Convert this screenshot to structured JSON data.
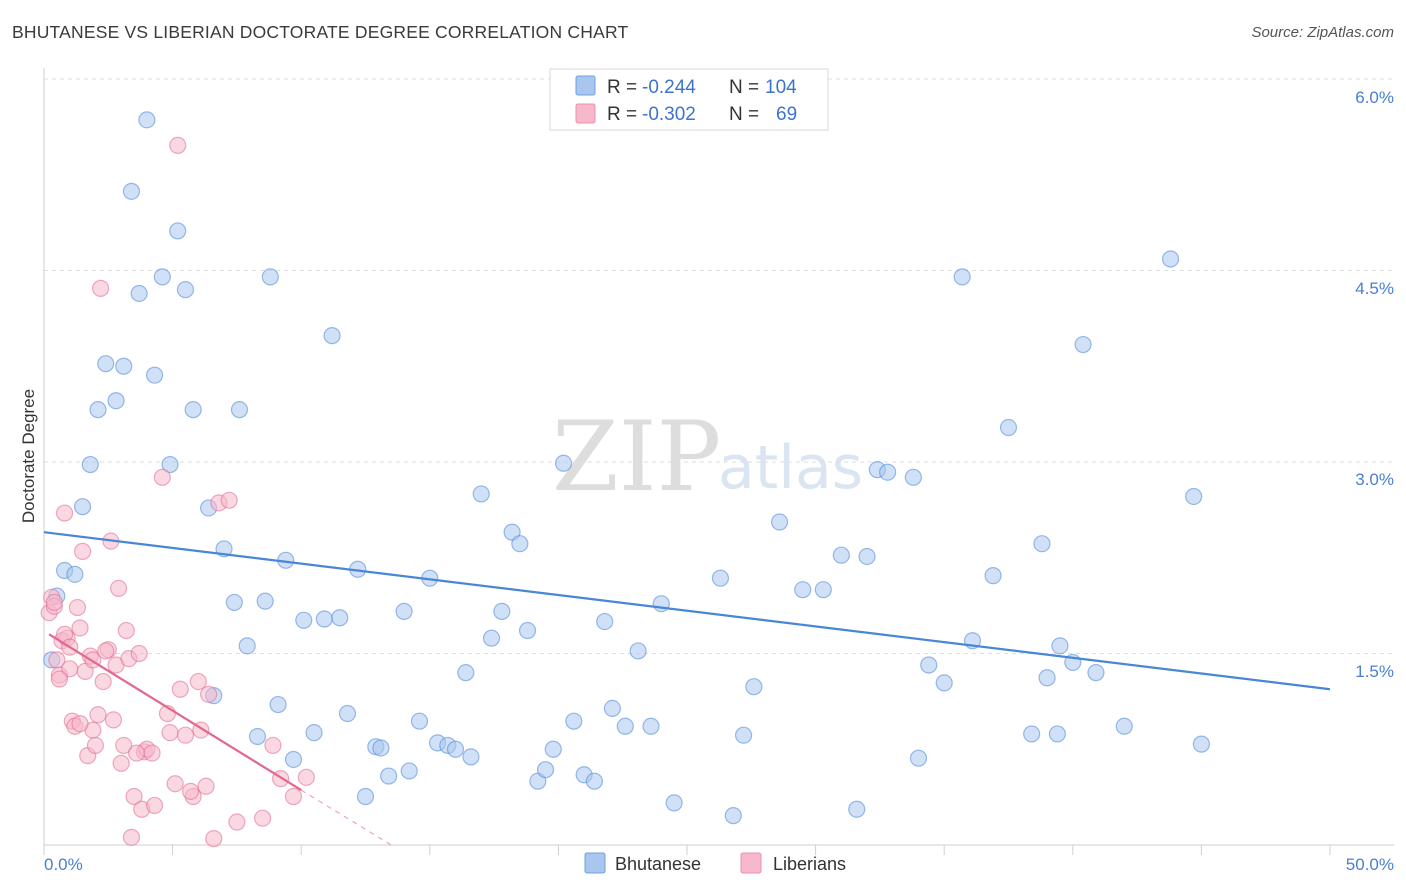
{
  "header": {
    "title": "BHUTANESE VS LIBERIAN DOCTORATE DEGREE CORRELATION CHART",
    "source": "Source: ZipAtlas.com"
  },
  "watermark": {
    "zip": "ZIP",
    "atlas": "atlas"
  },
  "legend": {
    "rows": [
      {
        "r_label": "R =",
        "r_value": "-0.244",
        "n_label": "N =",
        "n_value": "104",
        "color": "#a9c6ee"
      },
      {
        "r_label": "R =",
        "r_value": "-0.302",
        "n_label": "N =",
        "n_value": "69",
        "color": "#f6b8ca"
      }
    ]
  },
  "chart_data": {
    "type": "scatter",
    "title": "BHUTANESE VS LIBERIAN DOCTORATE DEGREE CORRELATION CHART",
    "ylabel": "Doctorate Degree",
    "xlabel": "",
    "xlim": [
      0,
      50
    ],
    "ylim": [
      0,
      6.2
    ],
    "x_tick_labels": [
      "0.0%",
      "50.0%"
    ],
    "y_ticks": [
      {
        "value": 1.5,
        "label": "1.5%"
      },
      {
        "value": 3.0,
        "label": "3.0%"
      },
      {
        "value": 4.5,
        "label": "4.5%"
      },
      {
        "value": 6.0,
        "label": "6.0%"
      }
    ],
    "series": [
      {
        "name": "Bhutanese",
        "color": "#4a86d8",
        "fill": "#a9c6ee",
        "trend": {
          "x": [
            0,
            50
          ],
          "y": [
            2.45,
            1.22
          ]
        },
        "points": [
          [
            0.3,
            1.45
          ],
          [
            0.5,
            1.95
          ],
          [
            0.8,
            2.15
          ],
          [
            1.2,
            2.12
          ],
          [
            1.5,
            2.65
          ],
          [
            1.8,
            2.98
          ],
          [
            2.1,
            3.41
          ],
          [
            2.4,
            3.77
          ],
          [
            2.8,
            3.48
          ],
          [
            3.1,
            3.75
          ],
          [
            3.4,
            5.12
          ],
          [
            3.7,
            4.32
          ],
          [
            4.0,
            5.68
          ],
          [
            4.3,
            3.68
          ],
          [
            4.6,
            4.45
          ],
          [
            4.9,
            2.98
          ],
          [
            5.2,
            4.81
          ],
          [
            5.5,
            4.35
          ],
          [
            5.8,
            3.41
          ],
          [
            6.4,
            2.64
          ],
          [
            6.6,
            1.17
          ],
          [
            7.0,
            2.32
          ],
          [
            7.4,
            1.9
          ],
          [
            7.6,
            3.41
          ],
          [
            7.9,
            1.56
          ],
          [
            8.3,
            0.85
          ],
          [
            8.6,
            1.91
          ],
          [
            8.8,
            4.45
          ],
          [
            9.1,
            1.1
          ],
          [
            9.4,
            2.23
          ],
          [
            9.7,
            0.67
          ],
          [
            10.1,
            1.76
          ],
          [
            10.5,
            0.88
          ],
          [
            10.9,
            1.77
          ],
          [
            11.2,
            3.99
          ],
          [
            11.5,
            1.78
          ],
          [
            11.8,
            1.03
          ],
          [
            12.2,
            2.16
          ],
          [
            12.5,
            0.38
          ],
          [
            12.9,
            0.77
          ],
          [
            13.1,
            0.76
          ],
          [
            13.4,
            0.54
          ],
          [
            14.0,
            1.83
          ],
          [
            14.2,
            0.58
          ],
          [
            14.6,
            0.97
          ],
          [
            15.0,
            2.09
          ],
          [
            15.3,
            0.8
          ],
          [
            15.7,
            0.78
          ],
          [
            16.0,
            0.75
          ],
          [
            16.4,
            1.35
          ],
          [
            16.6,
            0.69
          ],
          [
            17.0,
            2.75
          ],
          [
            17.4,
            1.62
          ],
          [
            17.8,
            1.83
          ],
          [
            18.2,
            2.45
          ],
          [
            18.5,
            2.36
          ],
          [
            18.8,
            1.68
          ],
          [
            19.2,
            0.5
          ],
          [
            19.5,
            0.59
          ],
          [
            19.8,
            0.75
          ],
          [
            20.2,
            2.99
          ],
          [
            20.6,
            0.97
          ],
          [
            21.0,
            0.55
          ],
          [
            21.4,
            0.5
          ],
          [
            21.8,
            1.75
          ],
          [
            22.1,
            1.07
          ],
          [
            22.6,
            0.93
          ],
          [
            23.1,
            1.52
          ],
          [
            23.6,
            0.93
          ],
          [
            24.0,
            1.89
          ],
          [
            24.5,
            0.33
          ],
          [
            26.3,
            2.09
          ],
          [
            26.8,
            0.23
          ],
          [
            27.2,
            0.86
          ],
          [
            27.6,
            1.24
          ],
          [
            28.6,
            2.53
          ],
          [
            29.5,
            2.0
          ],
          [
            30.3,
            2.0
          ],
          [
            31.0,
            2.27
          ],
          [
            31.6,
            0.28
          ],
          [
            32.0,
            2.26
          ],
          [
            32.4,
            2.94
          ],
          [
            32.8,
            2.92
          ],
          [
            33.8,
            2.88
          ],
          [
            34.0,
            0.68
          ],
          [
            34.4,
            1.41
          ],
          [
            35.0,
            1.27
          ],
          [
            35.7,
            4.45
          ],
          [
            36.1,
            1.6
          ],
          [
            36.9,
            2.11
          ],
          [
            37.5,
            3.27
          ],
          [
            38.4,
            0.87
          ],
          [
            38.8,
            2.36
          ],
          [
            39.0,
            1.31
          ],
          [
            39.4,
            0.87
          ],
          [
            39.5,
            1.56
          ],
          [
            40.0,
            1.43
          ],
          [
            40.4,
            3.92
          ],
          [
            40.9,
            1.35
          ],
          [
            42.0,
            0.93
          ],
          [
            43.8,
            4.59
          ],
          [
            44.7,
            2.73
          ],
          [
            45.0,
            0.79
          ]
        ]
      },
      {
        "name": "Liberians",
        "color": "#e2688f",
        "fill": "#f6b8ca",
        "trend": {
          "x": [
            0.2,
            10.0
          ],
          "y": [
            1.65,
            0.43
          ]
        },
        "trend_ext": {
          "x": [
            10.0,
            13.5
          ],
          "y": [
            0.43,
            0.0
          ]
        },
        "points": [
          [
            0.2,
            1.82
          ],
          [
            0.3,
            1.94
          ],
          [
            0.4,
            1.87
          ],
          [
            0.5,
            1.45
          ],
          [
            0.6,
            1.33
          ],
          [
            0.7,
            1.6
          ],
          [
            0.8,
            2.6
          ],
          [
            0.9,
            1.62
          ],
          [
            1.0,
            1.38
          ],
          [
            1.1,
            0.97
          ],
          [
            1.2,
            0.93
          ],
          [
            1.3,
            1.86
          ],
          [
            1.4,
            1.7
          ],
          [
            1.5,
            2.3
          ],
          [
            1.6,
            1.36
          ],
          [
            1.7,
            0.7
          ],
          [
            1.8,
            1.48
          ],
          [
            1.9,
            0.9
          ],
          [
            2.0,
            0.78
          ],
          [
            2.1,
            1.02
          ],
          [
            2.2,
            4.36
          ],
          [
            2.3,
            1.28
          ],
          [
            2.5,
            1.53
          ],
          [
            2.6,
            2.38
          ],
          [
            2.7,
            0.98
          ],
          [
            2.8,
            1.41
          ],
          [
            2.9,
            2.01
          ],
          [
            3.0,
            0.64
          ],
          [
            3.1,
            0.78
          ],
          [
            3.3,
            1.46
          ],
          [
            3.4,
            0.06
          ],
          [
            3.5,
            0.38
          ],
          [
            3.7,
            1.5
          ],
          [
            3.8,
            0.28
          ],
          [
            3.9,
            0.73
          ],
          [
            4.0,
            0.75
          ],
          [
            4.3,
            0.31
          ],
          [
            4.6,
            2.88
          ],
          [
            4.8,
            1.03
          ],
          [
            4.9,
            0.88
          ],
          [
            5.1,
            0.48
          ],
          [
            5.2,
            5.48
          ],
          [
            5.3,
            1.22
          ],
          [
            5.5,
            0.86
          ],
          [
            5.8,
            0.38
          ],
          [
            6.0,
            1.28
          ],
          [
            6.1,
            0.9
          ],
          [
            6.3,
            0.46
          ],
          [
            6.4,
            1.18
          ],
          [
            6.8,
            2.68
          ],
          [
            7.2,
            2.7
          ],
          [
            7.5,
            0.18
          ],
          [
            8.5,
            0.21
          ],
          [
            8.9,
            0.78
          ],
          [
            9.2,
            0.52
          ],
          [
            9.7,
            0.38
          ],
          [
            10.2,
            0.53
          ],
          [
            0.4,
            1.9
          ],
          [
            0.6,
            1.3
          ],
          [
            0.8,
            1.65
          ],
          [
            1.0,
            1.55
          ],
          [
            1.4,
            0.95
          ],
          [
            1.9,
            1.45
          ],
          [
            2.4,
            1.52
          ],
          [
            3.2,
            1.68
          ],
          [
            3.6,
            0.72
          ],
          [
            4.2,
            0.72
          ],
          [
            5.7,
            0.42
          ],
          [
            6.6,
            0.05
          ]
        ]
      }
    ]
  },
  "bottom_legend": {
    "items": [
      {
        "label": "Bhutanese",
        "color": "#a9c6ee"
      },
      {
        "label": "Liberians",
        "color": "#f6b8ca"
      }
    ]
  }
}
